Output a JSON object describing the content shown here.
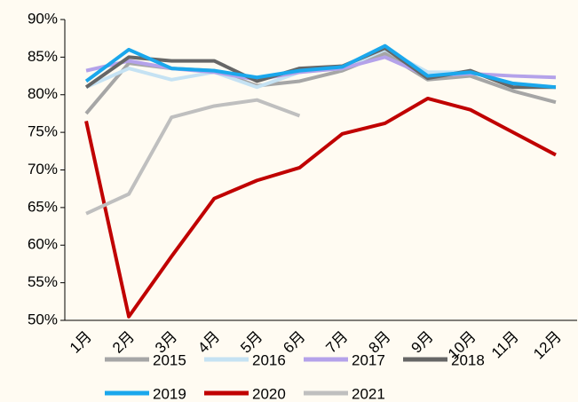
{
  "chart_data": {
    "type": "line",
    "categories": [
      "1月",
      "2月",
      "3月",
      "4月",
      "5月",
      "6月",
      "7月",
      "8月",
      "9月",
      "10月",
      "11月",
      "12月"
    ],
    "series": [
      {
        "name": "2015",
        "color": "#a6a6a6",
        "values": [
          77.5,
          84.2,
          83.5,
          83.2,
          81.2,
          81.8,
          83.2,
          85.5,
          82.0,
          82.5,
          80.5,
          79.0
        ]
      },
      {
        "name": "2016",
        "color": "#c5e2f3",
        "values": [
          81.0,
          83.5,
          82.0,
          83.0,
          81.0,
          83.0,
          83.5,
          86.0,
          83.0,
          83.0,
          81.5,
          81.0
        ]
      },
      {
        "name": "2017",
        "color": "#b4a2ea",
        "values": [
          83.2,
          84.5,
          83.5,
          83.0,
          82.0,
          83.0,
          83.5,
          85.0,
          82.5,
          82.8,
          82.5,
          82.3
        ]
      },
      {
        "name": "2018",
        "color": "#666666",
        "values": [
          81.0,
          85.0,
          84.5,
          84.5,
          81.8,
          83.5,
          83.8,
          86.2,
          82.2,
          83.2,
          81.0,
          81.0
        ]
      },
      {
        "name": "2019",
        "color": "#1aa7ec",
        "values": [
          81.8,
          86.0,
          83.5,
          83.2,
          82.3,
          83.2,
          83.7,
          86.5,
          82.5,
          83.0,
          81.5,
          81.0
        ]
      },
      {
        "name": "2020",
        "color": "#c00000",
        "values": [
          76.5,
          50.5,
          58.5,
          66.2,
          68.6,
          70.3,
          74.8,
          76.2,
          79.5,
          78.0,
          75.0,
          72.0
        ]
      },
      {
        "name": "2021",
        "color": "#bfbfbf",
        "values": [
          64.2,
          66.8,
          77.0,
          78.5,
          79.3,
          77.2,
          null,
          null,
          null,
          null,
          null,
          null
        ]
      }
    ],
    "ylim": [
      50,
      90
    ],
    "yticks": [
      {
        "value": 50,
        "label": "50%"
      },
      {
        "value": 55,
        "label": "55%"
      },
      {
        "value": 60,
        "label": "60%"
      },
      {
        "value": 65,
        "label": "65%"
      },
      {
        "value": 70,
        "label": "70%"
      },
      {
        "value": 75,
        "label": "75%"
      },
      {
        "value": 80,
        "label": "80%"
      },
      {
        "value": 85,
        "label": "85%"
      },
      {
        "value": 90,
        "label": "90%"
      }
    ],
    "grid": false,
    "legend": "bottom"
  }
}
